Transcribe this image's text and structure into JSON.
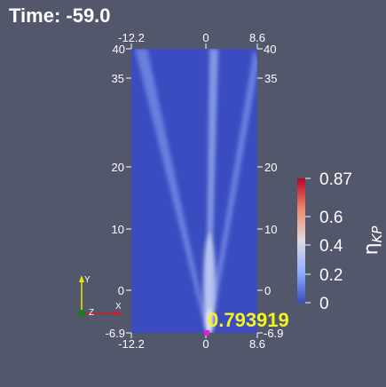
{
  "time_label": "Time: -59.0",
  "probe_value": "0.793919",
  "colorbar": {
    "title": "η",
    "title_subscript": "KP",
    "ticks": [
      "0.87",
      "0.6",
      "0.4",
      "0.2",
      "0"
    ],
    "colors": {
      "top": "#b40426",
      "middle": "#dddcdc",
      "bottom": "#3b4cc0"
    }
  },
  "axes": {
    "x_top_labels": [
      "-12.2",
      "0",
      "8.6"
    ],
    "x_bottom_labels": [
      "-12.2",
      "0",
      "8.6"
    ],
    "y_left_labels": [
      "40",
      "35",
      "20",
      "10",
      "0",
      "-6.9"
    ],
    "y_right_labels": [
      "40",
      "35",
      "20",
      "10",
      "0",
      "-6.9"
    ]
  },
  "orientation_axes": {
    "y": "Y",
    "z": "Z",
    "x": "X"
  },
  "colors": {
    "background": "#52576b",
    "field": "#3b4cc0",
    "highlight": "#f5f51e",
    "probe_marker": "#e020d0"
  }
}
